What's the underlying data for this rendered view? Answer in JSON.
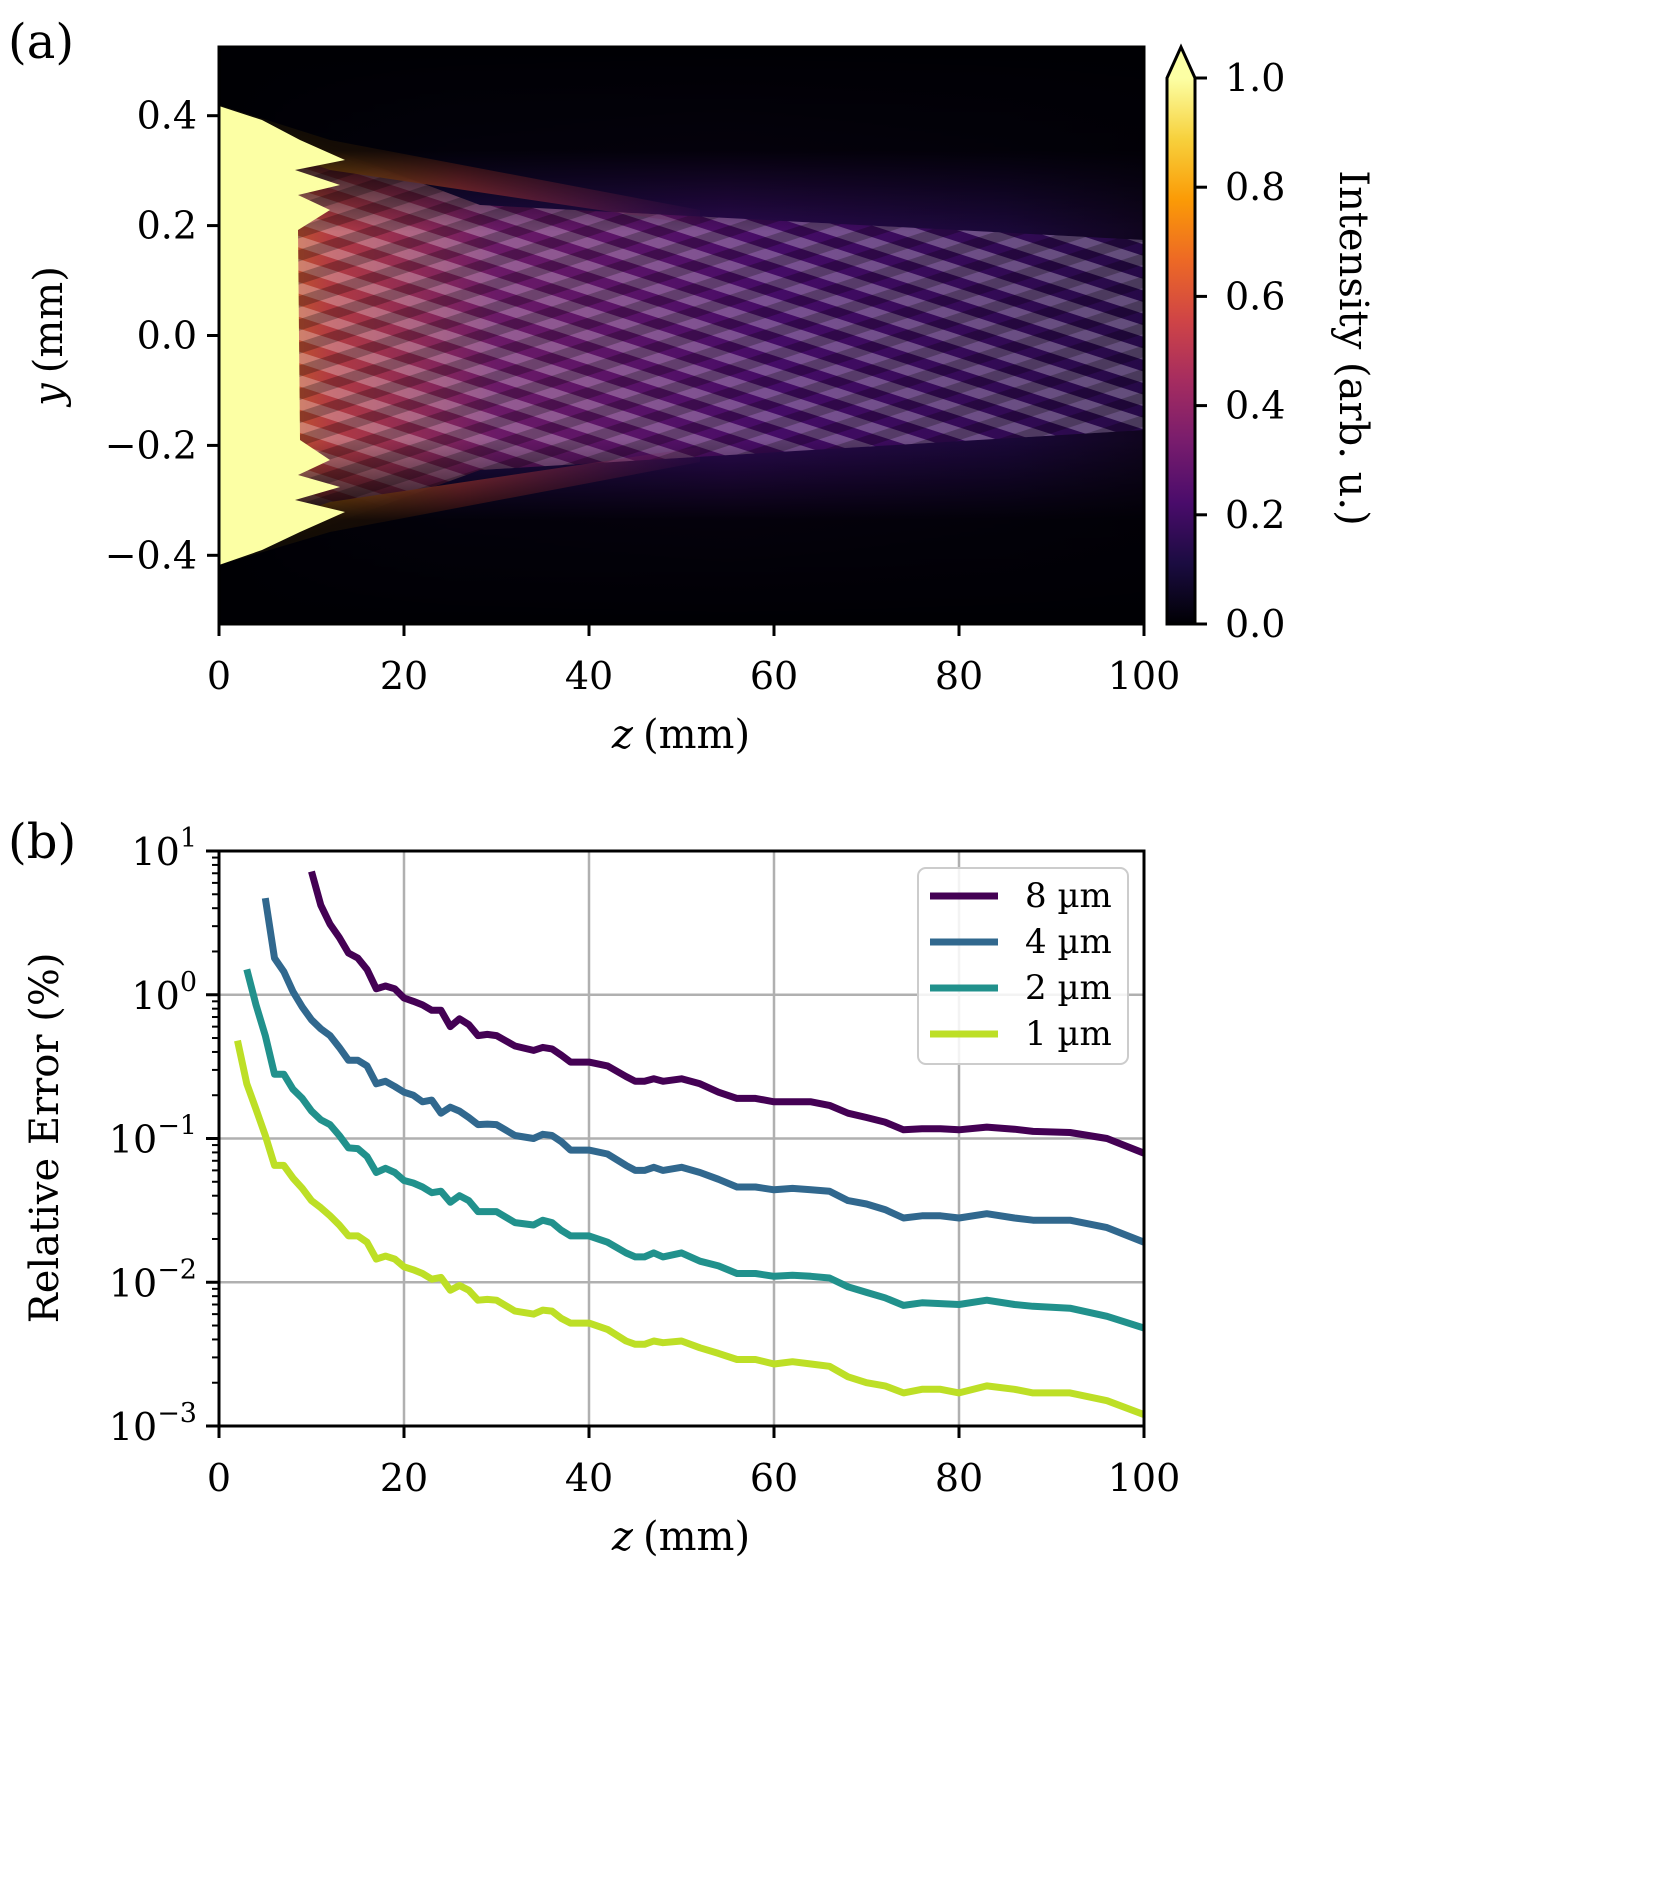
{
  "chart_data": [
    {
      "panel_label": "(a)",
      "type": "heatmap",
      "xlabel": "z (mm)",
      "xlabel_var": "z",
      "xlabel_unit": "(mm)",
      "ylabel": "y (mm)",
      "ylabel_var": "y",
      "ylabel_unit": "(mm)",
      "xlim": [
        0,
        100
      ],
      "ylim": [
        -0.525,
        0.525
      ],
      "x_ticks": [
        0,
        20,
        40,
        60,
        80,
        100
      ],
      "x_tick_labels": [
        "0",
        "20",
        "40",
        "60",
        "80",
        "100"
      ],
      "y_ticks": [
        0.4,
        0.2,
        0.0,
        -0.2,
        -0.4
      ],
      "y_tick_labels": [
        "0.4",
        "0.2",
        "0.0",
        "−0.2",
        "−0.4"
      ],
      "colorbar": {
        "label": "Intensity (arb. u.)",
        "colormap": "inferno",
        "range": [
          0,
          1.0
        ],
        "extend": "max",
        "ticks": [
          0.0,
          0.2,
          0.4,
          0.6,
          0.8,
          1.0
        ],
        "tick_labels": [
          "0.0",
          "0.2",
          "0.4",
          "0.6",
          "0.8",
          "1.0"
        ],
        "colors": [
          "#000004",
          "#1b0c41",
          "#4a0c6b",
          "#781c6d",
          "#a52c60",
          "#cf4446",
          "#ed6925",
          "#fb9b06",
          "#f7d13d",
          "#fcffa4"
        ]
      },
      "description_values": {
        "aperture_half_width_mm": 0.42,
        "saturated_region_end_z_mm": 8
      }
    },
    {
      "panel_label": "(b)",
      "type": "line",
      "xlabel": "z (mm)",
      "xlabel_var": "z",
      "xlabel_unit": "(mm)",
      "ylabel": "Relative Error (%)",
      "yscale": "log",
      "xlim": [
        0,
        100
      ],
      "ylim": [
        0.001,
        10
      ],
      "grid": true,
      "legend_position": "top-right",
      "x_ticks": [
        0,
        20,
        40,
        60,
        80,
        100
      ],
      "x_tick_labels": [
        "0",
        "20",
        "40",
        "60",
        "80",
        "100"
      ],
      "y_ticks": [
        10,
        1,
        0.1,
        0.01,
        0.001
      ],
      "y_tick_labels": [
        {
          "base": "10",
          "exp": "1"
        },
        {
          "base": "10",
          "exp": "0"
        },
        {
          "base": "10",
          "exp": "−1"
        },
        {
          "base": "10",
          "exp": "−2"
        },
        {
          "base": "10",
          "exp": "−3"
        }
      ],
      "series": [
        {
          "name": "8 µm",
          "color": "#440154",
          "x": [
            10,
            11,
            12,
            13,
            14,
            15,
            16,
            17,
            18,
            19,
            20,
            21,
            22,
            23,
            24,
            25,
            26,
            27,
            28,
            29,
            30,
            32,
            34,
            35,
            36,
            37,
            38,
            40,
            42,
            44,
            45,
            46,
            47,
            48,
            50,
            52,
            54,
            56,
            58,
            60,
            62,
            64,
            66,
            68,
            70,
            72,
            74,
            76,
            78,
            80,
            83,
            86,
            88,
            92,
            96,
            100
          ],
          "y": [
            7.2,
            4.2,
            3.1,
            2.5,
            1.95,
            1.8,
            1.5,
            1.1,
            1.15,
            1.1,
            0.95,
            0.9,
            0.85,
            0.78,
            0.78,
            0.6,
            0.68,
            0.62,
            0.52,
            0.53,
            0.52,
            0.44,
            0.41,
            0.43,
            0.42,
            0.38,
            0.34,
            0.34,
            0.32,
            0.27,
            0.25,
            0.25,
            0.26,
            0.25,
            0.26,
            0.24,
            0.21,
            0.19,
            0.19,
            0.18,
            0.18,
            0.18,
            0.17,
            0.15,
            0.14,
            0.13,
            0.115,
            0.117,
            0.117,
            0.115,
            0.12,
            0.116,
            0.112,
            0.11,
            0.1,
            0.079
          ]
        },
        {
          "name": "4 µm",
          "color": "#31688e",
          "x": [
            5,
            6,
            7,
            8,
            9,
            10,
            11,
            12,
            13,
            14,
            15,
            16,
            17,
            18,
            19,
            20,
            21,
            22,
            23,
            24,
            25,
            26,
            27,
            28,
            29,
            30,
            32,
            34,
            35,
            36,
            37,
            38,
            40,
            42,
            44,
            45,
            46,
            47,
            48,
            50,
            52,
            54,
            56,
            58,
            60,
            62,
            64,
            66,
            68,
            70,
            72,
            74,
            76,
            78,
            80,
            83,
            86,
            88,
            92,
            96,
            100
          ],
          "y": [
            4.7,
            1.8,
            1.45,
            1.05,
            0.82,
            0.67,
            0.58,
            0.52,
            0.43,
            0.35,
            0.35,
            0.32,
            0.24,
            0.25,
            0.23,
            0.21,
            0.2,
            0.18,
            0.185,
            0.15,
            0.165,
            0.155,
            0.14,
            0.125,
            0.126,
            0.125,
            0.105,
            0.1,
            0.107,
            0.105,
            0.095,
            0.083,
            0.083,
            0.078,
            0.065,
            0.06,
            0.06,
            0.063,
            0.06,
            0.063,
            0.058,
            0.052,
            0.046,
            0.046,
            0.044,
            0.045,
            0.044,
            0.043,
            0.037,
            0.035,
            0.032,
            0.028,
            0.029,
            0.029,
            0.028,
            0.03,
            0.028,
            0.027,
            0.027,
            0.024,
            0.019
          ]
        },
        {
          "name": "2 µm",
          "color": "#21918c",
          "x": [
            3,
            4,
            5,
            6,
            7,
            8,
            9,
            10,
            11,
            12,
            13,
            14,
            15,
            16,
            17,
            18,
            19,
            20,
            21,
            22,
            23,
            24,
            25,
            26,
            27,
            28,
            29,
            30,
            32,
            34,
            35,
            36,
            37,
            38,
            40,
            42,
            44,
            45,
            46,
            47,
            48,
            50,
            52,
            54,
            56,
            58,
            60,
            62,
            64,
            66,
            68,
            70,
            72,
            74,
            76,
            78,
            80,
            83,
            86,
            88,
            92,
            96,
            100
          ],
          "y": [
            1.5,
            0.85,
            0.52,
            0.28,
            0.28,
            0.22,
            0.19,
            0.155,
            0.135,
            0.125,
            0.105,
            0.086,
            0.085,
            0.075,
            0.058,
            0.062,
            0.058,
            0.051,
            0.049,
            0.046,
            0.042,
            0.043,
            0.036,
            0.04,
            0.037,
            0.031,
            0.031,
            0.031,
            0.026,
            0.025,
            0.027,
            0.026,
            0.023,
            0.021,
            0.021,
            0.019,
            0.016,
            0.015,
            0.015,
            0.016,
            0.015,
            0.016,
            0.014,
            0.013,
            0.0115,
            0.0115,
            0.011,
            0.0112,
            0.011,
            0.0107,
            0.0093,
            0.0085,
            0.0078,
            0.0069,
            0.0072,
            0.0071,
            0.007,
            0.0075,
            0.007,
            0.0068,
            0.0066,
            0.0058,
            0.0048
          ]
        },
        {
          "name": "1 µm",
          "color": "#bddf26",
          "x": [
            2,
            3,
            4,
            5,
            6,
            7,
            8,
            9,
            10,
            11,
            12,
            13,
            14,
            15,
            16,
            17,
            18,
            19,
            20,
            21,
            22,
            23,
            24,
            25,
            26,
            27,
            28,
            29,
            30,
            32,
            34,
            35,
            36,
            37,
            38,
            40,
            42,
            44,
            45,
            46,
            47,
            48,
            50,
            52,
            54,
            56,
            58,
            60,
            62,
            64,
            66,
            68,
            70,
            72,
            74,
            76,
            78,
            80,
            83,
            86,
            88,
            92,
            96,
            100
          ],
          "y": [
            0.48,
            0.24,
            0.16,
            0.105,
            0.065,
            0.065,
            0.053,
            0.045,
            0.037,
            0.033,
            0.029,
            0.025,
            0.021,
            0.021,
            0.019,
            0.0145,
            0.0152,
            0.0145,
            0.0128,
            0.0122,
            0.0115,
            0.0105,
            0.0108,
            0.0088,
            0.0095,
            0.0088,
            0.0075,
            0.0076,
            0.0075,
            0.0063,
            0.006,
            0.0064,
            0.0063,
            0.0056,
            0.0052,
            0.0052,
            0.0047,
            0.0039,
            0.0037,
            0.0037,
            0.0039,
            0.0038,
            0.0039,
            0.0035,
            0.0032,
            0.0029,
            0.0029,
            0.0027,
            0.0028,
            0.0027,
            0.0026,
            0.0022,
            0.002,
            0.0019,
            0.0017,
            0.0018,
            0.0018,
            0.0017,
            0.0019,
            0.0018,
            0.0017,
            0.0017,
            0.0015,
            0.0012
          ]
        }
      ]
    }
  ]
}
